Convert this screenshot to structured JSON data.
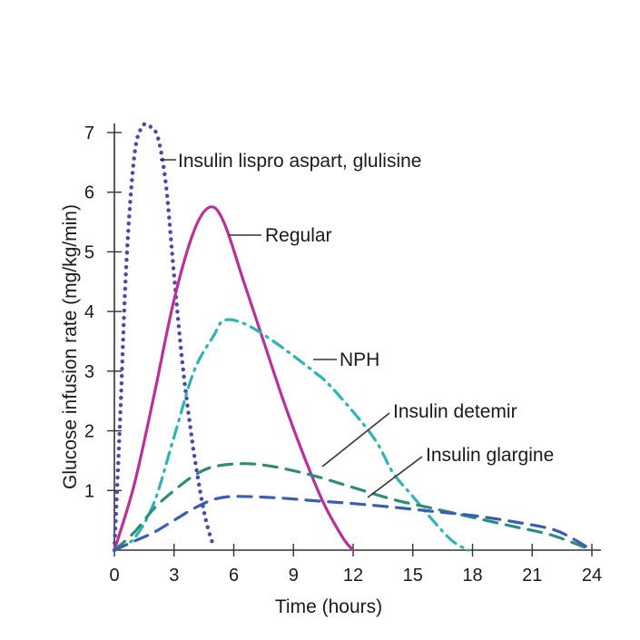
{
  "chart_data": {
    "type": "line",
    "title": "",
    "xlabel": "Time (hours)",
    "ylabel": "Glucose infusion rate (mg/kg/min)",
    "xlim": [
      0,
      24
    ],
    "ylim": [
      0,
      7
    ],
    "x_ticks": [
      0,
      3,
      6,
      9,
      12,
      15,
      18,
      21,
      24
    ],
    "y_ticks": [
      1,
      2,
      3,
      4,
      5,
      6,
      7
    ],
    "grid": false,
    "legend": "none",
    "series": [
      {
        "name": "Insulin lispro aspart, glulisine",
        "color": "#4a4aa8",
        "style": "dotted",
        "x": [
          0,
          0.3,
          0.6,
          1.0,
          1.4,
          1.8,
          2.2,
          2.6,
          3.0,
          3.4,
          3.8,
          4.2,
          4.6,
          5.0
        ],
        "y": [
          0,
          2.3,
          4.8,
          6.6,
          7.1,
          7.1,
          6.9,
          6.1,
          4.6,
          3.2,
          2.1,
          1.2,
          0.5,
          0.05
        ]
      },
      {
        "name": "Regular",
        "color": "#b8309a",
        "style": "solid",
        "x": [
          0,
          1,
          2,
          3,
          4,
          4.8,
          5.5,
          6.5,
          7.5,
          8.5,
          9.5,
          10.5,
          11.5,
          12
        ],
        "y": [
          0,
          1.1,
          2.6,
          4.2,
          5.35,
          5.75,
          5.5,
          4.5,
          3.5,
          2.5,
          1.6,
          0.8,
          0.2,
          0
        ]
      },
      {
        "name": "NPH",
        "color": "#2fb3b3",
        "style": "dash-dot",
        "x": [
          0,
          1,
          2,
          3,
          4,
          5,
          5.5,
          6.5,
          8,
          10,
          11,
          13,
          14,
          15,
          16,
          17,
          17.8
        ],
        "y": [
          0,
          0.2,
          0.8,
          1.9,
          3.0,
          3.6,
          3.85,
          3.8,
          3.5,
          3.0,
          2.7,
          1.9,
          1.3,
          0.9,
          0.5,
          0.15,
          0
        ]
      },
      {
        "name": "Insulin detemir",
        "color": "#2e8c7a",
        "style": "dashed",
        "x": [
          0,
          1,
          2,
          3,
          4,
          5,
          6.5,
          8,
          10,
          12,
          14,
          16,
          18,
          20,
          22,
          24
        ],
        "y": [
          0,
          0.3,
          0.7,
          1.0,
          1.25,
          1.4,
          1.45,
          1.4,
          1.25,
          1.05,
          0.85,
          0.7,
          0.55,
          0.4,
          0.25,
          0
        ]
      },
      {
        "name": "Insulin glargine",
        "color": "#3a5db0",
        "style": "dashed",
        "x": [
          0,
          1,
          2,
          3,
          4,
          5,
          6,
          8,
          10,
          12,
          14,
          16,
          18,
          20,
          22,
          23,
          24
        ],
        "y": [
          0,
          0.15,
          0.3,
          0.5,
          0.7,
          0.85,
          0.9,
          0.88,
          0.83,
          0.78,
          0.72,
          0.65,
          0.58,
          0.48,
          0.35,
          0.2,
          0
        ]
      }
    ]
  }
}
